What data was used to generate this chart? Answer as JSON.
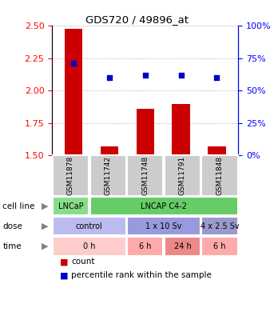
{
  "title": "GDS720 / 49896_at",
  "samples": [
    "GSM11878",
    "GSM11742",
    "GSM11748",
    "GSM11791",
    "GSM11848"
  ],
  "bar_values": [
    2.48,
    1.57,
    1.86,
    1.9,
    1.57
  ],
  "dot_values": [
    2.21,
    2.1,
    2.12,
    2.12,
    2.1
  ],
  "ylim_left": [
    1.5,
    2.5
  ],
  "ylim_right": [
    0,
    100
  ],
  "yticks_left": [
    1.5,
    1.75,
    2.0,
    2.25,
    2.5
  ],
  "yticks_right": [
    0,
    25,
    50,
    75,
    100
  ],
  "bar_color": "#cc0000",
  "dot_color": "#0000cc",
  "cell_line_row": [
    {
      "label": "LNCaP",
      "span": [
        0,
        1
      ],
      "color": "#88dd88"
    },
    {
      "label": "LNCAP C4-2",
      "span": [
        1,
        5
      ],
      "color": "#66cc66"
    }
  ],
  "dose_row": [
    {
      "label": "control",
      "span": [
        0,
        2
      ],
      "color": "#bbbbee"
    },
    {
      "label": "1 x 10 Sv",
      "span": [
        2,
        4
      ],
      "color": "#9999dd"
    },
    {
      "label": "4 x 2.5 Sv",
      "span": [
        4,
        5
      ],
      "color": "#9999cc"
    }
  ],
  "time_row": [
    {
      "label": "0 h",
      "span": [
        0,
        2
      ],
      "color": "#ffcccc"
    },
    {
      "label": "6 h",
      "span": [
        2,
        3
      ],
      "color": "#ffaaaa"
    },
    {
      "label": "24 h",
      "span": [
        3,
        4
      ],
      "color": "#ee8888"
    },
    {
      "label": "6 h",
      "span": [
        4,
        5
      ],
      "color": "#ffaaaa"
    }
  ],
  "legend_count": "count",
  "legend_pct": "percentile rank within the sample",
  "sample_box_color": "#cccccc",
  "grid_color": "#aaaaaa"
}
